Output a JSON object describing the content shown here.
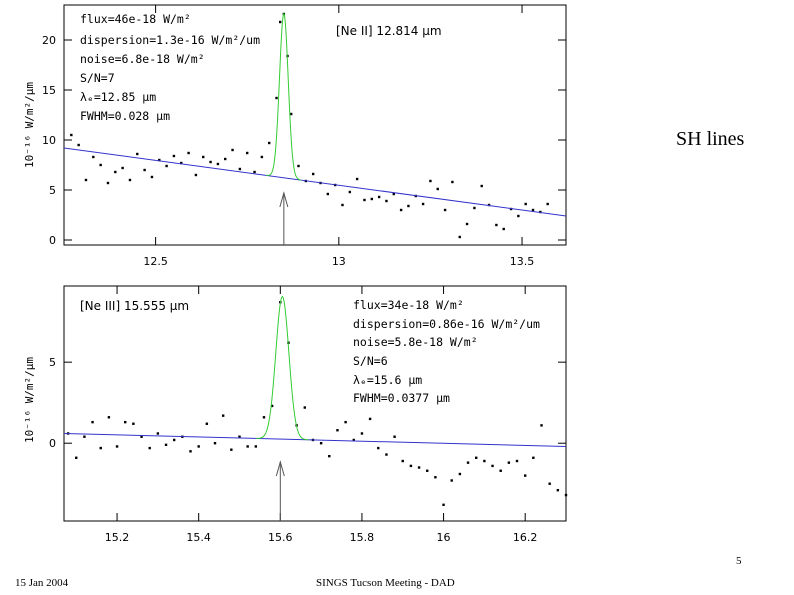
{
  "slide": {
    "title": "SH lines",
    "page_number": "5",
    "footer_date": "15 Jan 2004",
    "footer_meeting": "SINGS Tucson Meeting - DAD"
  },
  "colors": {
    "fit": "#33cc33",
    "continuum": "#3333cc",
    "points": "#000000",
    "frame": "#000000",
    "background": "#ffffff"
  },
  "chart_data": [
    {
      "type": "scatter",
      "title": "[Ne II] 12.814 μm",
      "xlabel": "",
      "ylabel": "10⁻¹⁶ W/m²/μm",
      "xlim": [
        12.25,
        13.62
      ],
      "ylim": [
        -0.5,
        23.5
      ],
      "xticks": [
        12.5,
        13,
        13.5
      ],
      "xtick_labels": [
        "12.5",
        "13",
        "13.5"
      ],
      "yticks": [
        0,
        5,
        10,
        15,
        20
      ],
      "ytick_labels": [
        "0",
        "5",
        "10",
        "15",
        "20"
      ],
      "annotations": [
        "flux=46e-18 W/m²",
        "dispersion=1.3e-16 W/m²/um",
        "noise=6.8e-18 W/m²",
        "S/N=7",
        "λₑ=12.85 μm",
        "FWHM=0.028 μm"
      ],
      "line_center": 12.85,
      "continuum": {
        "x": [
          12.25,
          13.62
        ],
        "y": [
          9.2,
          2.4
        ]
      },
      "gaussian": {
        "center": 12.85,
        "fwhm": 0.028,
        "peak": 16.4
      },
      "points": {
        "x": [
          12.27,
          12.29,
          12.31,
          12.33,
          12.35,
          12.37,
          12.39,
          12.41,
          12.43,
          12.45,
          12.47,
          12.49,
          12.51,
          12.53,
          12.55,
          12.57,
          12.59,
          12.61,
          12.63,
          12.65,
          12.67,
          12.69,
          12.71,
          12.73,
          12.75,
          12.77,
          12.79,
          12.81,
          12.83,
          12.84,
          12.85,
          12.86,
          12.87,
          12.89,
          12.91,
          12.93,
          12.95,
          12.97,
          12.99,
          13.01,
          13.03,
          13.05,
          13.07,
          13.09,
          13.11,
          13.13,
          13.15,
          13.17,
          13.19,
          13.21,
          13.23,
          13.25,
          13.27,
          13.29,
          13.31,
          13.33,
          13.35,
          13.37,
          13.39,
          13.41,
          13.43,
          13.45,
          13.47,
          13.49,
          13.51,
          13.53,
          13.55,
          13.57
        ],
        "y": [
          10.5,
          9.5,
          6.0,
          8.3,
          7.5,
          5.7,
          6.8,
          7.2,
          6.0,
          8.6,
          7.0,
          6.3,
          8.0,
          7.4,
          8.4,
          7.7,
          8.7,
          6.5,
          8.3,
          7.8,
          7.6,
          8.1,
          9.0,
          7.1,
          8.7,
          6.8,
          8.3,
          9.7,
          14.2,
          21.8,
          22.6,
          18.4,
          12.6,
          7.4,
          5.9,
          6.6,
          5.7,
          4.6,
          5.5,
          3.5,
          4.8,
          6.1,
          4.0,
          4.1,
          4.3,
          3.9,
          4.6,
          3.0,
          3.4,
          4.4,
          3.6,
          5.9,
          5.1,
          3.0,
          5.8,
          0.3,
          1.6,
          3.2,
          5.4,
          3.5,
          1.5,
          1.1,
          3.1,
          2.4,
          3.6,
          3.0,
          2.8,
          3.6
        ]
      }
    },
    {
      "type": "scatter",
      "title": "[Ne III] 15.555 μm",
      "xlabel": "",
      "ylabel": "10⁻¹⁶ W/m²/μm",
      "xlim": [
        15.07,
        16.3
      ],
      "ylim": [
        -4.8,
        9.7
      ],
      "xticks": [
        15.2,
        15.4,
        15.6,
        15.8,
        16,
        16.2
      ],
      "xtick_labels": [
        "15.2",
        "15.4",
        "15.6",
        "15.8",
        "16",
        "16.2"
      ],
      "yticks": [
        0,
        5
      ],
      "ytick_labels": [
        "0",
        "5"
      ],
      "annotations": [
        "flux=34e-18 W/m²",
        "dispersion=0.86e-16 W/m²/um",
        "noise=5.8e-18 W/m²",
        "S/N=6",
        "λₑ=15.6 μm",
        "FWHM=0.0377 μm"
      ],
      "line_center": 15.6,
      "continuum": {
        "x": [
          15.07,
          16.3
        ],
        "y": [
          0.6,
          -0.2
        ]
      },
      "gaussian": {
        "center": 15.605,
        "fwhm": 0.0377,
        "peak": 8.8
      },
      "points": {
        "x": [
          15.08,
          15.1,
          15.12,
          15.14,
          15.16,
          15.18,
          15.2,
          15.22,
          15.24,
          15.26,
          15.28,
          15.3,
          15.32,
          15.34,
          15.36,
          15.38,
          15.4,
          15.42,
          15.44,
          15.46,
          15.48,
          15.5,
          15.52,
          15.54,
          15.56,
          15.58,
          15.6,
          15.62,
          15.64,
          15.66,
          15.68,
          15.7,
          15.72,
          15.74,
          15.76,
          15.78,
          15.8,
          15.82,
          15.84,
          15.86,
          15.88,
          15.9,
          15.92,
          15.94,
          15.96,
          15.98,
          16.0,
          16.02,
          16.04,
          16.06,
          16.08,
          16.1,
          16.12,
          16.14,
          16.16,
          16.18,
          16.2,
          16.22,
          16.24,
          16.26,
          16.28,
          16.3
        ],
        "y": [
          0.6,
          -0.9,
          0.4,
          1.3,
          -0.3,
          1.6,
          -0.2,
          1.3,
          1.2,
          0.4,
          -0.3,
          0.6,
          -0.1,
          0.2,
          0.4,
          -0.5,
          -0.2,
          1.2,
          0.0,
          1.7,
          -0.4,
          0.4,
          -0.2,
          -0.2,
          1.6,
          2.3,
          8.7,
          6.2,
          1.1,
          2.2,
          0.2,
          0.0,
          -0.8,
          0.8,
          1.3,
          0.2,
          0.6,
          1.5,
          -0.3,
          -0.7,
          0.4,
          -1.1,
          -1.4,
          -1.5,
          -1.7,
          -2.1,
          -3.8,
          -2.3,
          -1.9,
          -1.2,
          -0.9,
          -1.1,
          -1.4,
          -1.7,
          -1.2,
          -1.1,
          -2.0,
          -0.9,
          1.1,
          -2.5,
          -2.9,
          -3.2
        ]
      }
    }
  ]
}
